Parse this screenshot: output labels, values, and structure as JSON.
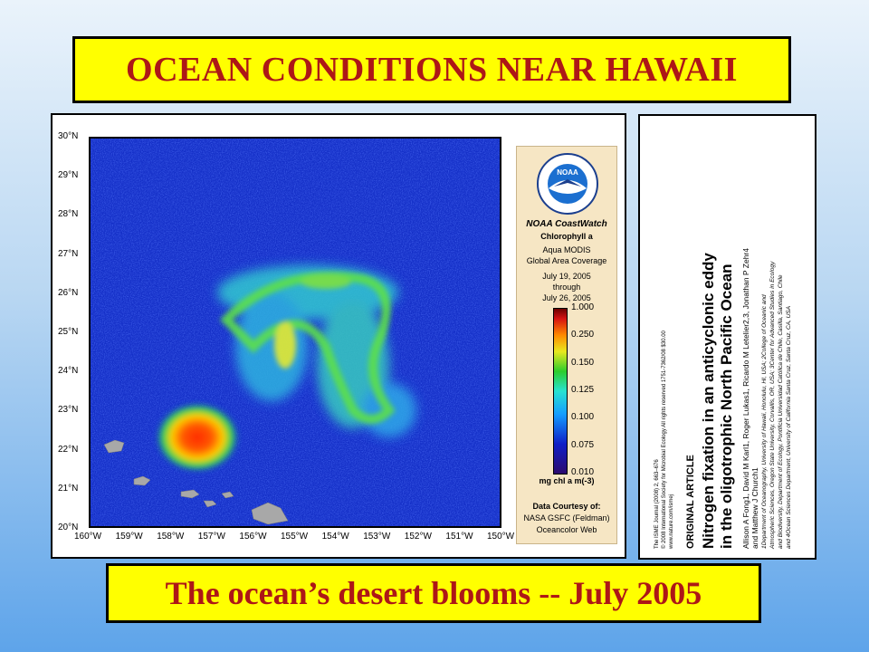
{
  "title": "OCEAN CONDITIONS NEAR HAWAII",
  "caption": "The ocean’s desert blooms -- July 2005",
  "map": {
    "lat_labels": [
      "30°N",
      "29°N",
      "28°N",
      "27°N",
      "26°N",
      "25°N",
      "24°N",
      "23°N",
      "22°N",
      "21°N",
      "20°N"
    ],
    "lon_labels": [
      "160°W",
      "159°W",
      "158°W",
      "157°W",
      "156°W",
      "155°W",
      "154°W",
      "153°W",
      "152°W",
      "151°W",
      "150°W"
    ]
  },
  "legend": {
    "agency": "NOAA",
    "org_ring": "NATIONAL OCEANIC AND ATMOSPHERIC ADMINISTRATION · U.S. DEPARTMENT OF COMMERCE",
    "product": "NOAA CoastWatch",
    "variable": "Chlorophyll a",
    "sensor": "Aqua MODIS",
    "coverage": "Global Area Coverage",
    "date_start": "July 19, 2005",
    "through": "through",
    "date_end": "July 26, 2005",
    "scale": [
      "1.000",
      "0.250",
      "0.150",
      "0.125",
      "0.100",
      "0.075",
      "0.010"
    ],
    "units": "mg chl a m(-3)",
    "courtesy": "Data Courtesy of:",
    "source1": "NASA GSFC (Feldman)",
    "source2": "Oceancolor Web",
    "colors": {
      "low": "#2c0b6f",
      "mid": "#2ccd2c",
      "high": "#6b0000"
    }
  },
  "paper": {
    "journal_line1": "The ISME Journal (2008) 2, 663–676",
    "journal_line2": "© 2008 International Society for Microbial Ecology   All rights reserved 1751-7362/08 $30.00",
    "journal_line3": "www.nature.com/ismej",
    "section": "ORIGINAL ARTICLE",
    "title_line1": "Nitrogen fixation in an anticyclonic eddy",
    "title_line2": "in the oligotrophic North Pacific Ocean",
    "authors_line1": "Allison A Fong1, David M Karl1, Roger Lukas1, Ricardo M Letelier2,3, Jonathan P Zehr4",
    "authors_line2": "and Matthew J Church1",
    "aff_line1": "1Department of Oceanography, University of Hawaii, Honolulu, HI, USA; 2College of Oceanic and",
    "aff_line2": "Atmospheric Sciences, Oregon State University, Corvallis, OR, USA; 3Center for Advanced Studies in Ecology",
    "aff_line3": "and Biodiversity, Department of Ecology, Pontificia Universidad Católica de Chile, Casilla, Santiago, Chile",
    "aff_line4": "and 4Ocean Sciences Department, University of California Santa Cruz, Santa Cruz, CA, USA"
  }
}
